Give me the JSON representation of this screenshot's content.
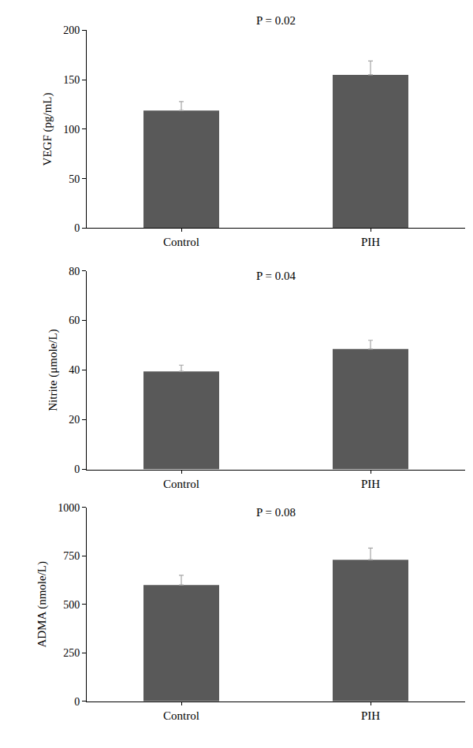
{
  "chart_data": [
    {
      "type": "bar",
      "title": "P = 0.02",
      "y_label": "VEGF (pg/mL)",
      "categories": [
        "Control",
        "PIH"
      ],
      "values": [
        119,
        155
      ],
      "errors": [
        9,
        14
      ],
      "color": "#595959",
      "ylim": [
        0,
        200
      ],
      "yticks": [
        0,
        50,
        100,
        150,
        200
      ],
      "grid": false
    },
    {
      "type": "bar",
      "title": "P = 0.04",
      "y_label": "Nitrite (μmole/L)",
      "categories": [
        "Control",
        "PIH"
      ],
      "values": [
        39.5,
        48.5
      ],
      "errors": [
        2.5,
        3.5
      ],
      "color": "#595959",
      "ylim": [
        0,
        80
      ],
      "yticks": [
        0,
        20,
        40,
        60,
        80
      ],
      "grid": false
    },
    {
      "type": "bar",
      "title": "P = 0.08",
      "y_label": "ADMA (nmole/L)",
      "categories": [
        "Control",
        "PIH"
      ],
      "values": [
        600,
        730
      ],
      "errors": [
        50,
        60
      ],
      "color": "#595959",
      "ylim": [
        0,
        1000
      ],
      "yticks": [
        0,
        250,
        500,
        750,
        1000
      ],
      "grid": false
    }
  ]
}
